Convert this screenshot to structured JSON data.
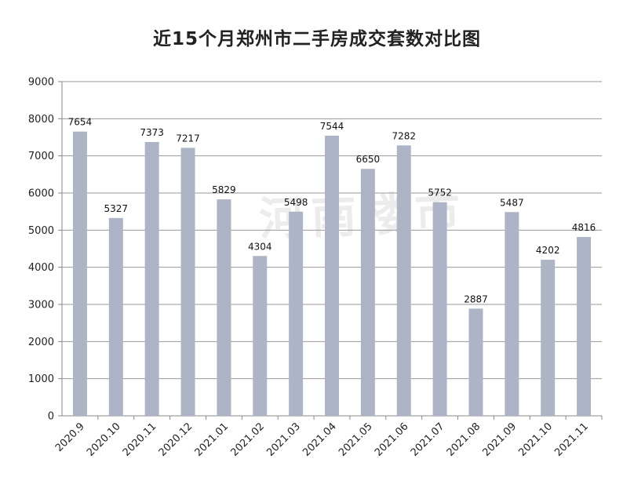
{
  "chart_data": {
    "type": "bar",
    "title": "近15个月郑州市二手房成交套数对比图",
    "categories": [
      "2020.9",
      "2020.10",
      "2020.11",
      "2020.12",
      "2021.01",
      "2021.02",
      "2021.03",
      "2021.04",
      "2021.05",
      "2021.06",
      "2021.07",
      "2021.08",
      "2021.09",
      "2021.10",
      "2021.11"
    ],
    "values": [
      7654,
      5327,
      7373,
      7217,
      5829,
      4304,
      5498,
      7544,
      6650,
      7282,
      5752,
      2887,
      5487,
      4202,
      4816
    ],
    "ylim": [
      0,
      9000
    ],
    "yticks": [
      0,
      1000,
      2000,
      3000,
      4000,
      5000,
      6000,
      7000,
      8000,
      9000
    ],
    "grid": true,
    "legend": "none",
    "bar_color": "#adb4c5",
    "watermark": "河南楼市"
  }
}
